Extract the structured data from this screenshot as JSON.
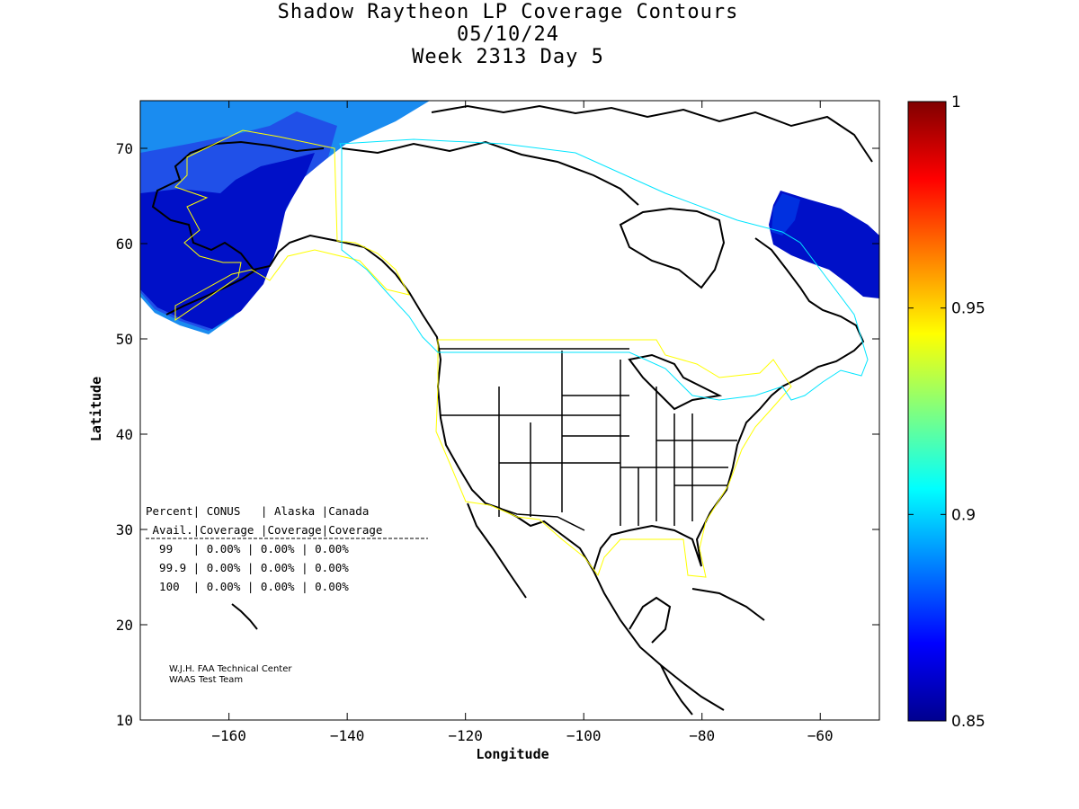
{
  "title": {
    "line1": "Shadow Raytheon LP Coverage Contours",
    "line2": "05/10/24",
    "line3": "Week 2313 Day 5"
  },
  "axes": {
    "xlabel": "Longitude",
    "ylabel": "Latitude",
    "xlim": [
      -175,
      -50
    ],
    "ylim": [
      10,
      75
    ],
    "xticks": [
      -160,
      -140,
      -120,
      -100,
      -80,
      -60
    ],
    "yticks": [
      10,
      20,
      30,
      40,
      50,
      60,
      70
    ]
  },
  "colorbar": {
    "min": 0.85,
    "max": 1,
    "ticks": [
      "0.85",
      "0.9",
      "0.95",
      "1"
    ],
    "tick_values": [
      0.85,
      0.9,
      0.95,
      1.0
    ]
  },
  "table": {
    "header1": "Percent| CONUS   | Alaska |Canada",
    "header2": " Avail.|Coverage |Coverage|Coverage",
    "rows": [
      "  99   | 0.00% | 0.00% | 0.00%",
      "  99.9 | 0.00% | 0.00% | 0.00%",
      "  100  | 0.00% | 0.00% | 0.00%"
    ]
  },
  "credit": {
    "line1": "W.J.H. FAA Technical Center",
    "line2": "WAAS Test Team"
  },
  "colors": {
    "coverage_deep": "#0010c8",
    "coverage_mid": "#2050e8",
    "coverage_light": "#1a8cf0",
    "alaska_boundary": "#ffff00",
    "conus_boundary": "#ffff00",
    "canada_boundary": "#00e5ff",
    "coastline": "#000000"
  }
}
